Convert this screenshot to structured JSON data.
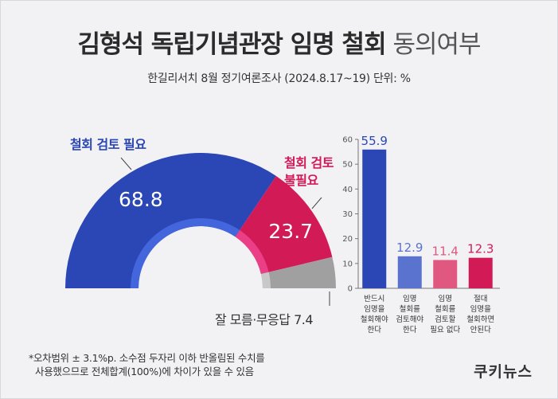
{
  "title": {
    "main": "김형석 독립기념관장 임명 철회",
    "sub": "동의여부"
  },
  "subtitle": "한길리서치 8월 정기여론조사 (2024.8.17~19) 단위: %",
  "colors": {
    "blue": "#2b46b5",
    "red": "#d21a57",
    "gray": "#a0a0a0",
    "light_blue": "#5a73cf",
    "pink": "#e0577f"
  },
  "chart_data": [
    {
      "type": "pie",
      "style": "semi-donut",
      "slices": [
        {
          "label": "철회 검토 필요",
          "value": 68.8,
          "color": "#2b46b5"
        },
        {
          "label": "철회 검토 불필요",
          "value": 23.7,
          "color": "#d21a57"
        },
        {
          "label": "잘 모름·무응답",
          "value": 7.4,
          "color": "#a0a0a0"
        }
      ],
      "labels": {
        "blue": "철회 검토 필요",
        "red_line1": "철회 검토",
        "red_line2": "불필요",
        "gray": "잘 모름·무응답 7.4"
      }
    },
    {
      "type": "bar",
      "categories": [
        [
          "반드시",
          "임명을",
          "철회해야",
          "한다"
        ],
        [
          "임명",
          "철회를",
          "검토해야",
          "한다"
        ],
        [
          "임명",
          "철회를",
          "검토할",
          "필요 없다"
        ],
        [
          "절대",
          "임명을",
          "철회하면",
          "안된다"
        ]
      ],
      "values": [
        55.9,
        12.9,
        11.4,
        12.3
      ],
      "colors": [
        "#2b46b5",
        "#5a73cf",
        "#e0577f",
        "#d21a57"
      ],
      "ylim": [
        0,
        60
      ],
      "yticks": [
        0,
        10,
        20,
        30,
        40,
        50,
        60
      ],
      "grid": false
    }
  ],
  "footnote": [
    "*오차범위 ± 3.1%p. 소수점 두자리 이하 반올림된 수치를",
    "사용했으므로 전체합계(100%)에 차이가 있을 수 있음"
  ],
  "logo": "쿠키뉴스"
}
